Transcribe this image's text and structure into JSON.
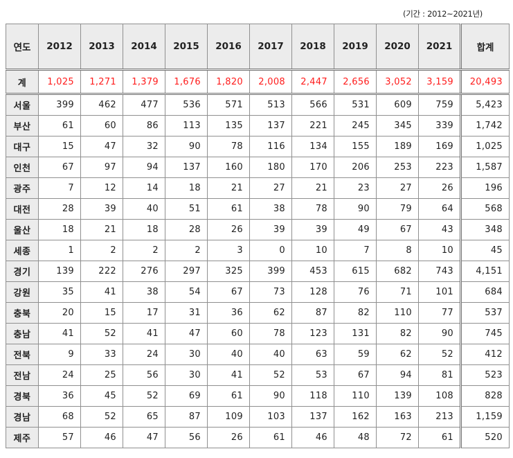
{
  "period_note": "(기간 : 2012~2021년)",
  "header": {
    "region_label": "연도",
    "years": [
      "2012",
      "2013",
      "2014",
      "2015",
      "2016",
      "2017",
      "2018",
      "2019",
      "2020",
      "2021"
    ],
    "sum_label": "합계"
  },
  "total": {
    "label": "계",
    "values": [
      "1,025",
      "1,271",
      "1,379",
      "1,676",
      "1,820",
      "2,008",
      "2,447",
      "2,656",
      "3,052",
      "3,159"
    ],
    "sum": "20,493"
  },
  "rows": [
    {
      "region": "서울",
      "values": [
        "399",
        "462",
        "477",
        "536",
        "571",
        "513",
        "566",
        "531",
        "609",
        "759"
      ],
      "sum": "5,423"
    },
    {
      "region": "부산",
      "values": [
        "61",
        "60",
        "86",
        "113",
        "135",
        "137",
        "221",
        "245",
        "345",
        "339"
      ],
      "sum": "1,742"
    },
    {
      "region": "대구",
      "values": [
        "15",
        "47",
        "32",
        "90",
        "78",
        "116",
        "134",
        "155",
        "189",
        "169"
      ],
      "sum": "1,025"
    },
    {
      "region": "인천",
      "values": [
        "67",
        "97",
        "94",
        "137",
        "160",
        "180",
        "170",
        "206",
        "253",
        "223"
      ],
      "sum": "1,587"
    },
    {
      "region": "광주",
      "values": [
        "7",
        "12",
        "14",
        "18",
        "21",
        "27",
        "21",
        "23",
        "27",
        "26"
      ],
      "sum": "196"
    },
    {
      "region": "대전",
      "values": [
        "28",
        "39",
        "40",
        "51",
        "61",
        "38",
        "78",
        "90",
        "79",
        "64"
      ],
      "sum": "568"
    },
    {
      "region": "울산",
      "values": [
        "18",
        "21",
        "18",
        "28",
        "26",
        "39",
        "39",
        "49",
        "67",
        "43"
      ],
      "sum": "348"
    },
    {
      "region": "세종",
      "values": [
        "1",
        "2",
        "2",
        "2",
        "3",
        "0",
        "10",
        "7",
        "8",
        "10"
      ],
      "sum": "45"
    },
    {
      "region": "경기",
      "values": [
        "139",
        "222",
        "276",
        "297",
        "325",
        "399",
        "453",
        "615",
        "682",
        "743"
      ],
      "sum": "4,151"
    },
    {
      "region": "강원",
      "values": [
        "35",
        "41",
        "38",
        "54",
        "67",
        "73",
        "128",
        "76",
        "71",
        "101"
      ],
      "sum": "684"
    },
    {
      "region": "충북",
      "values": [
        "20",
        "15",
        "17",
        "31",
        "36",
        "62",
        "87",
        "82",
        "110",
        "77"
      ],
      "sum": "537"
    },
    {
      "region": "충남",
      "values": [
        "41",
        "52",
        "41",
        "47",
        "60",
        "78",
        "123",
        "131",
        "82",
        "90"
      ],
      "sum": "745"
    },
    {
      "region": "전북",
      "values": [
        "9",
        "33",
        "24",
        "30",
        "40",
        "40",
        "63",
        "59",
        "62",
        "52"
      ],
      "sum": "412"
    },
    {
      "region": "전남",
      "values": [
        "24",
        "25",
        "56",
        "30",
        "41",
        "52",
        "53",
        "67",
        "94",
        "81"
      ],
      "sum": "523"
    },
    {
      "region": "경북",
      "values": [
        "36",
        "45",
        "52",
        "69",
        "61",
        "90",
        "118",
        "110",
        "139",
        "108"
      ],
      "sum": "828"
    },
    {
      "region": "경남",
      "values": [
        "68",
        "52",
        "65",
        "87",
        "109",
        "103",
        "137",
        "162",
        "163",
        "213"
      ],
      "sum": "1,159"
    },
    {
      "region": "제주",
      "values": [
        "57",
        "46",
        "47",
        "56",
        "26",
        "61",
        "46",
        "48",
        "72",
        "61"
      ],
      "sum": "520"
    }
  ],
  "colors": {
    "header_bg": "#ececec",
    "total_text": "#ff1c1c",
    "border": "#8f8f8f"
  }
}
